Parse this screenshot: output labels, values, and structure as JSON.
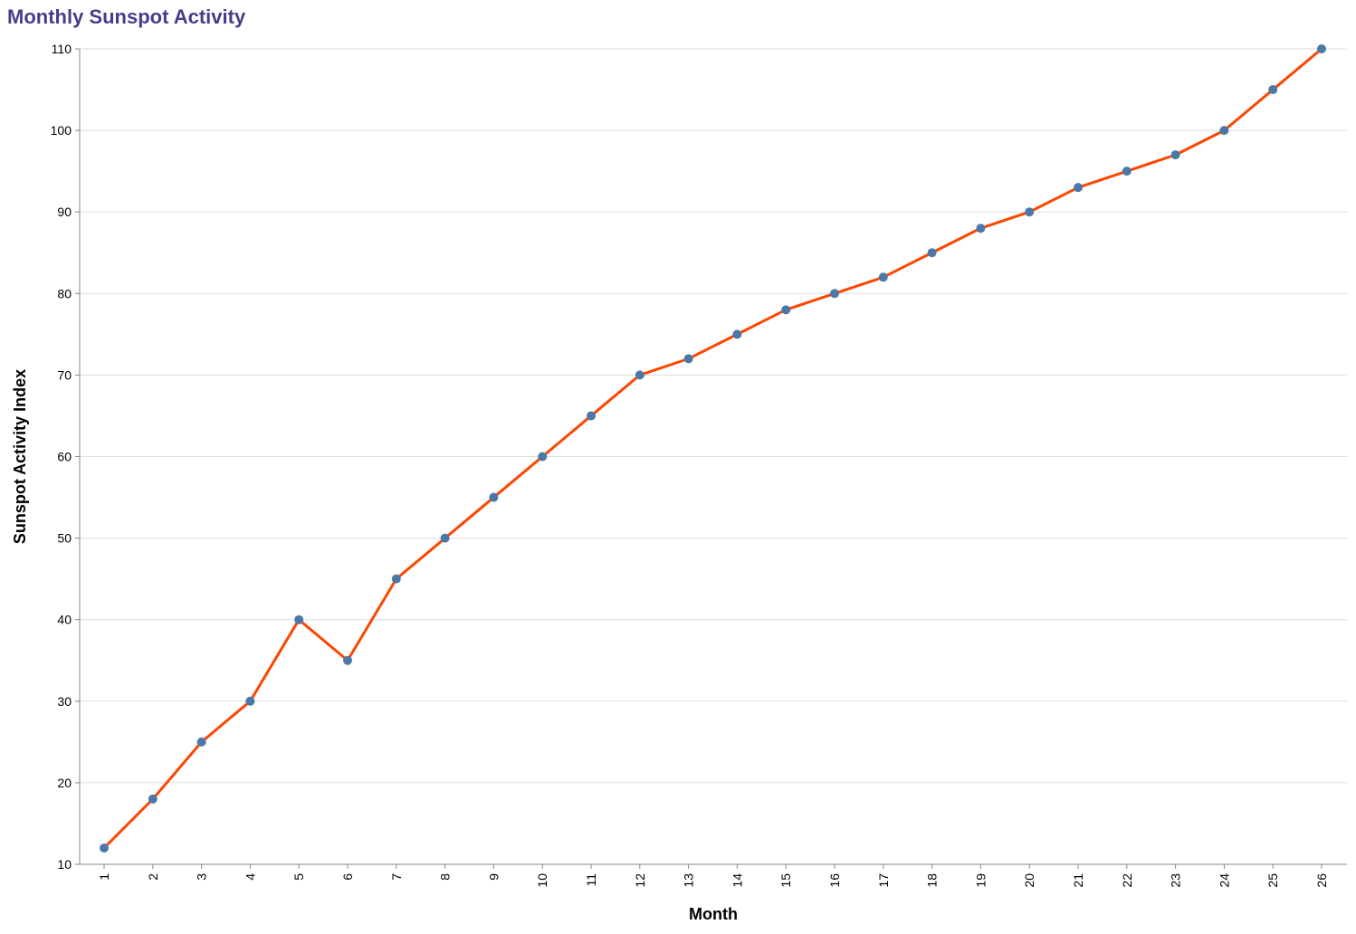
{
  "chart_data": {
    "type": "line",
    "title": "Monthly Sunspot Activity",
    "xlabel": "Month",
    "ylabel": "Sunspot Activity Index",
    "x": [
      1,
      2,
      3,
      4,
      5,
      6,
      7,
      8,
      9,
      10,
      11,
      12,
      13,
      14,
      15,
      16,
      17,
      18,
      19,
      20,
      21,
      22,
      23,
      24,
      25,
      26
    ],
    "series": [
      {
        "values": [
          12,
          18,
          25,
          30,
          40,
          35,
          45,
          50,
          55,
          60,
          65,
          70,
          72,
          75,
          78,
          80,
          82,
          85,
          88,
          90,
          93,
          95,
          97,
          100,
          105,
          110
        ]
      }
    ],
    "ylim": [
      10,
      110
    ],
    "yticks": [
      10,
      20,
      30,
      40,
      50,
      60,
      70,
      80,
      90,
      100,
      110
    ],
    "grid": true,
    "colors": {
      "line": "#FF4500",
      "point": "#4C78A8",
      "title": "#483D8B",
      "grid": "#DDDDDD",
      "axis": "#888888"
    }
  }
}
